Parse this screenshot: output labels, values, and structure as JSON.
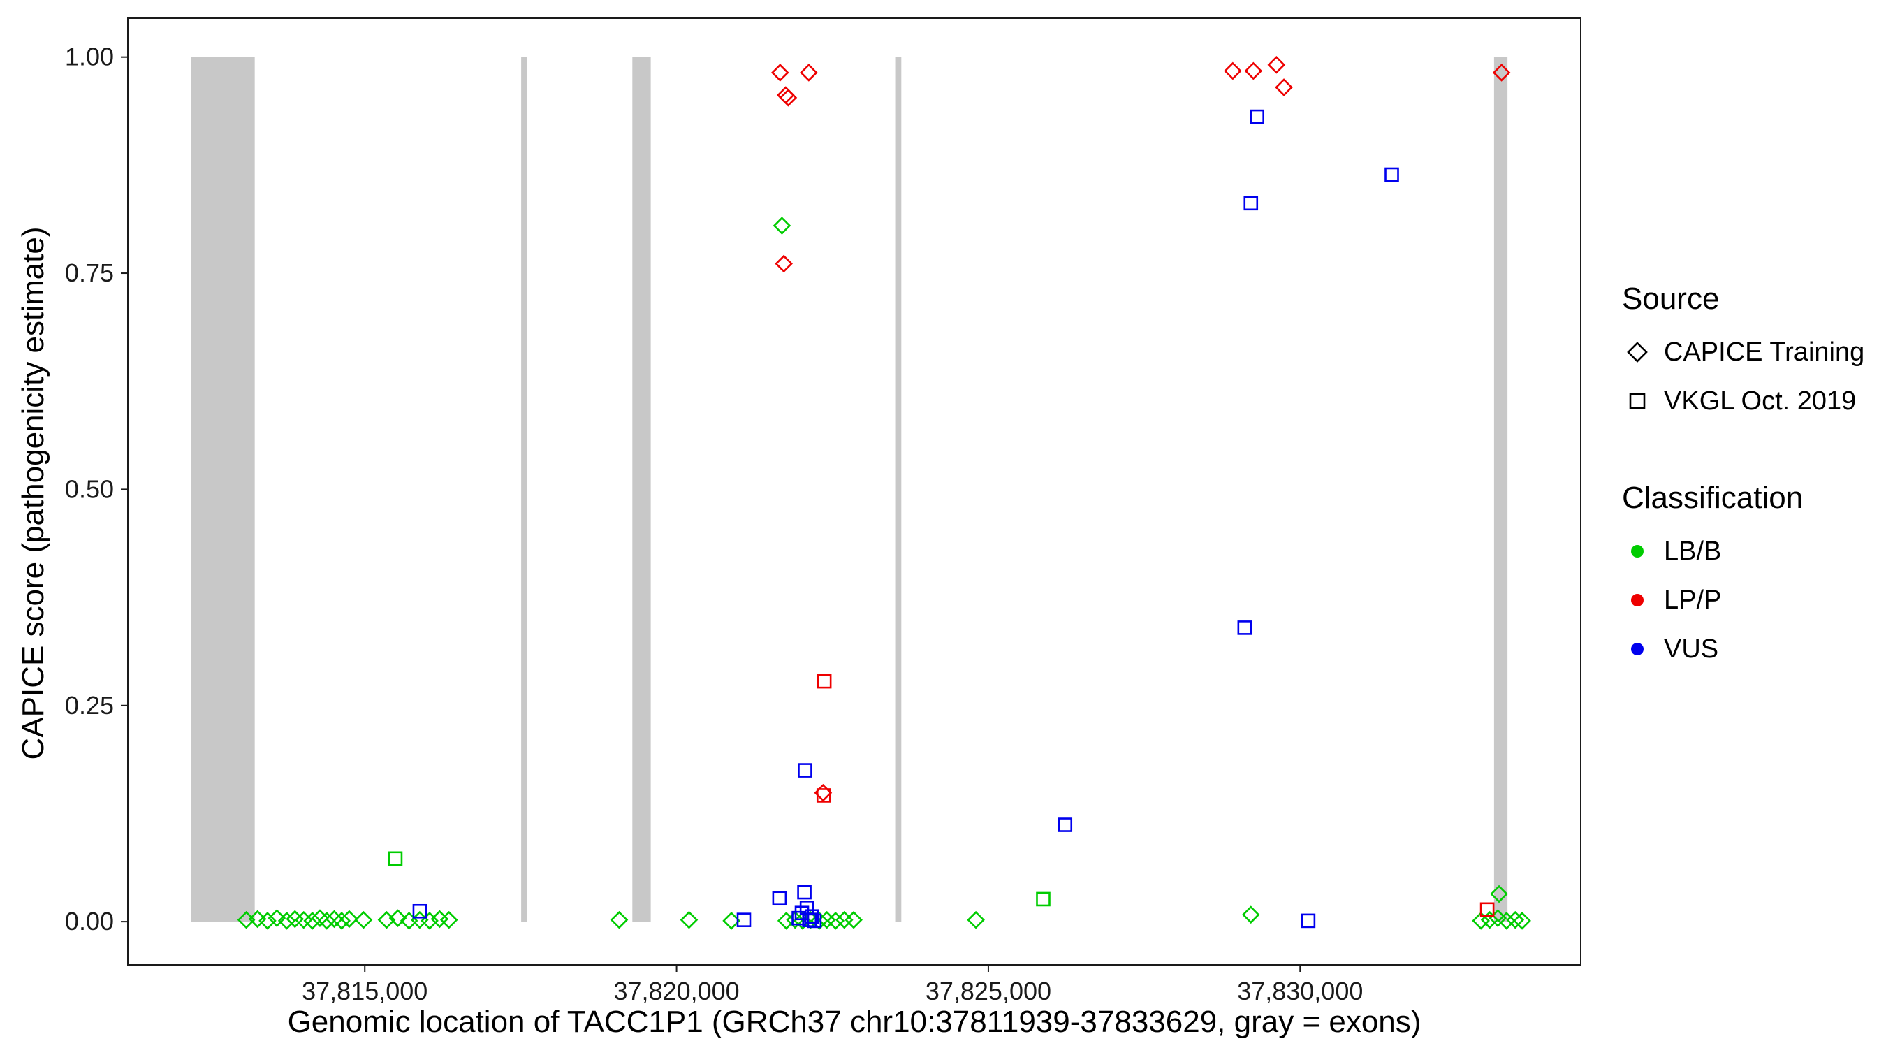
{
  "chart_data": {
    "type": "scatter",
    "title": "",
    "xlabel": "Genomic location of TACC1P1 (GRCh37 chr10:37811939-37833629, gray = exons)",
    "ylabel": "CAPICE score (pathogenicity estimate)",
    "xlim": [
      37811200,
      37834500
    ],
    "ylim": [
      -0.05,
      1.045
    ],
    "grid": "off",
    "legend_position": "right",
    "x_ticks": [
      {
        "value": 37815000,
        "label": "37,815,000"
      },
      {
        "value": 37820000,
        "label": "37,820,000"
      },
      {
        "value": 37825000,
        "label": "37,825,000"
      },
      {
        "value": 37830000,
        "label": "37,830,000"
      }
    ],
    "y_ticks": [
      {
        "value": 0.0,
        "label": "0.00"
      },
      {
        "value": 0.25,
        "label": "0.25"
      },
      {
        "value": 0.5,
        "label": "0.50"
      },
      {
        "value": 0.75,
        "label": "0.75"
      },
      {
        "value": 1.0,
        "label": "1.00"
      }
    ],
    "exons": [
      [
        37812216,
        37813235
      ],
      [
        37817508,
        37817606
      ],
      [
        37819291,
        37819586
      ],
      [
        37823506,
        37823604
      ],
      [
        37833110,
        37833325
      ]
    ],
    "colors": {
      "LB/B": "#00CC00",
      "LP/P": "#EE0000",
      "VUS": "#0000EE",
      "exon": "#C8C8C8"
    },
    "series": [
      {
        "name": "CAPICE Training",
        "marker": "diamond",
        "points": [
          [
            37813100,
            0.002,
            "LB/B"
          ],
          [
            37813280,
            0.003,
            "LB/B"
          ],
          [
            37813440,
            0.001,
            "LB/B"
          ],
          [
            37813590,
            0.004,
            "LB/B"
          ],
          [
            37813750,
            0.001,
            "LB/B"
          ],
          [
            37813880,
            0.003,
            "LB/B"
          ],
          [
            37814020,
            0.002,
            "LB/B"
          ],
          [
            37814160,
            0.001,
            "LB/B"
          ],
          [
            37814280,
            0.004,
            "LB/B"
          ],
          [
            37814390,
            0.001,
            "LB/B"
          ],
          [
            37814510,
            0.003,
            "LB/B"
          ],
          [
            37814630,
            0.001,
            "LB/B"
          ],
          [
            37814750,
            0.003,
            "LB/B"
          ],
          [
            37814980,
            0.002,
            "LB/B"
          ],
          [
            37815350,
            0.002,
            "LB/B"
          ],
          [
            37815530,
            0.004,
            "LB/B"
          ],
          [
            37815710,
            0.001,
            "LB/B"
          ],
          [
            37815880,
            0.002,
            "LB/B"
          ],
          [
            37816040,
            0.001,
            "LB/B"
          ],
          [
            37816200,
            0.003,
            "LB/B"
          ],
          [
            37816350,
            0.002,
            "LB/B"
          ],
          [
            37819080,
            0.002,
            "LB/B"
          ],
          [
            37820200,
            0.002,
            "LB/B"
          ],
          [
            37820880,
            0.001,
            "LB/B"
          ],
          [
            37821690,
            0.805,
            "LB/B"
          ],
          [
            37821760,
            0.001,
            "LB/B"
          ],
          [
            37821900,
            0.002,
            "LB/B"
          ],
          [
            37822020,
            0.001,
            "LB/B"
          ],
          [
            37822150,
            0.002,
            "LB/B"
          ],
          [
            37822290,
            0.001,
            "LB/B"
          ],
          [
            37822410,
            0.002,
            "LB/B"
          ],
          [
            37822550,
            0.001,
            "LB/B"
          ],
          [
            37822690,
            0.002,
            "LB/B"
          ],
          [
            37822840,
            0.002,
            "LB/B"
          ],
          [
            37824800,
            0.002,
            "LB/B"
          ],
          [
            37829210,
            0.008,
            "LB/B"
          ],
          [
            37833190,
            0.032,
            "LB/B"
          ],
          [
            37832900,
            0.001,
            "LB/B"
          ],
          [
            37833040,
            0.002,
            "LB/B"
          ],
          [
            37833170,
            0.004,
            "LB/B"
          ],
          [
            37833310,
            0.001,
            "LB/B"
          ],
          [
            37833450,
            0.002,
            "LB/B"
          ],
          [
            37833560,
            0.001,
            "LB/B"
          ],
          [
            37821660,
            0.982,
            "LP/P"
          ],
          [
            37822120,
            0.982,
            "LP/P"
          ],
          [
            37821750,
            0.956,
            "LP/P"
          ],
          [
            37821790,
            0.953,
            "LP/P"
          ],
          [
            37821720,
            0.761,
            "LP/P"
          ],
          [
            37822350,
            0.149,
            "LP/P"
          ],
          [
            37828920,
            0.984,
            "LP/P"
          ],
          [
            37829250,
            0.984,
            "LP/P"
          ],
          [
            37829620,
            0.991,
            "LP/P"
          ],
          [
            37829740,
            0.965,
            "LP/P"
          ],
          [
            37833230,
            0.982,
            "LP/P"
          ]
        ]
      },
      {
        "name": "VKGL Oct. 2019",
        "marker": "square",
        "points": [
          [
            37815490,
            0.073,
            "LB/B"
          ],
          [
            37825880,
            0.026,
            "LB/B"
          ],
          [
            37822370,
            0.278,
            "LP/P"
          ],
          [
            37822360,
            0.146,
            "LP/P"
          ],
          [
            37833000,
            0.014,
            "LP/P"
          ],
          [
            37815882,
            0.012,
            "VUS"
          ],
          [
            37821080,
            0.002,
            "VUS"
          ],
          [
            37821650,
            0.027,
            "VUS"
          ],
          [
            37822050,
            0.034,
            "VUS"
          ],
          [
            37822010,
            0.01,
            "VUS"
          ],
          [
            37821960,
            0.004,
            "VUS"
          ],
          [
            37822090,
            0.016,
            "VUS"
          ],
          [
            37822130,
            0.002,
            "VUS"
          ],
          [
            37822170,
            0.006,
            "VUS"
          ],
          [
            37822210,
            0.001,
            "VUS"
          ],
          [
            37822060,
            0.175,
            "VUS"
          ],
          [
            37826230,
            0.112,
            "VUS"
          ],
          [
            37829310,
            0.931,
            "VUS"
          ],
          [
            37829210,
            0.831,
            "VUS"
          ],
          [
            37831470,
            0.864,
            "VUS"
          ],
          [
            37829110,
            0.34,
            "VUS"
          ],
          [
            37830130,
            0.001,
            "VUS"
          ]
        ]
      }
    ]
  },
  "legend": {
    "source": {
      "title": "Source",
      "items": [
        {
          "label": "CAPICE Training",
          "marker": "diamond"
        },
        {
          "label": "VKGL Oct. 2019",
          "marker": "square"
        }
      ]
    },
    "classification": {
      "title": "Classification",
      "items": [
        {
          "label": "LB/B",
          "color": "#00CC00"
        },
        {
          "label": "LP/P",
          "color": "#EE0000"
        },
        {
          "label": "VUS",
          "color": "#0000EE"
        }
      ]
    }
  }
}
